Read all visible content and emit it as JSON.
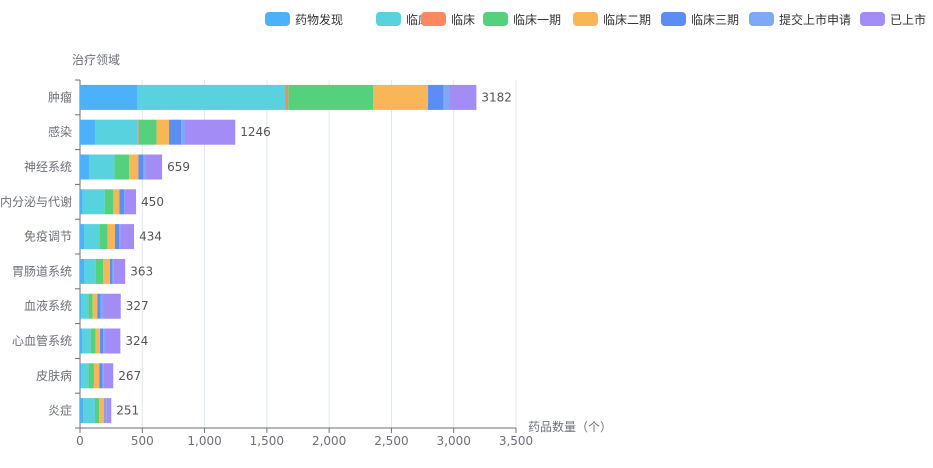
{
  "chart_data": {
    "type": "bar",
    "orientation": "horizontal",
    "stacked": true,
    "ylabel": "治疗领域",
    "xlabel": "药品数量（个）",
    "xlim": [
      0,
      3500
    ],
    "xticks": [
      "0",
      "500",
      "1,000",
      "1,500",
      "2,000",
      "2,500",
      "3,000",
      "3,500"
    ],
    "grid": true,
    "legend_position": "top-right",
    "categories": [
      "肿瘤",
      "感染",
      "神经系统",
      "内分泌与代谢",
      "免疫调节",
      "胃肠道系统",
      "血液系统",
      "心血管系统",
      "皮肤病",
      "炎症"
    ],
    "totals": [
      3182,
      1246,
      659,
      450,
      434,
      363,
      327,
      324,
      267,
      251
    ],
    "series": [
      {
        "name": "药物发现",
        "color": "#4bb1fa",
        "values": [
          463,
          120,
          72,
          21,
          32,
          32,
          8,
          16,
          11,
          27
        ]
      },
      {
        "name": "临床前",
        "color": "#58d2de",
        "values": [
          1183,
          343,
          204,
          177,
          123,
          96,
          59,
          70,
          56,
          93
        ]
      },
      {
        "name": "临床",
        "color": "#ff8760",
        "values": [
          26,
          8,
          0,
          0,
          0,
          0,
          0,
          0,
          0,
          0
        ]
      },
      {
        "name": "临床一期",
        "color": "#55d07d",
        "values": [
          680,
          144,
          118,
          70,
          67,
          59,
          35,
          40,
          45,
          33
        ]
      },
      {
        "name": "临床二期",
        "color": "#f8b656",
        "values": [
          442,
          100,
          75,
          48,
          59,
          54,
          37,
          35,
          43,
          42
        ]
      },
      {
        "name": "临床三期",
        "color": "#5d8cf4",
        "values": [
          126,
          96,
          40,
          37,
          35,
          21,
          27,
          26,
          27,
          11
        ]
      },
      {
        "name": "提交上市申请",
        "color": "#7fa9f6",
        "values": [
          46,
          32,
          16,
          8,
          8,
          8,
          19,
          14,
          8,
          5
        ]
      },
      {
        "name": "已上市",
        "color": "#a38cf6",
        "values": [
          216,
          403,
          134,
          89,
          110,
          93,
          142,
          123,
          77,
          40
        ]
      }
    ]
  }
}
